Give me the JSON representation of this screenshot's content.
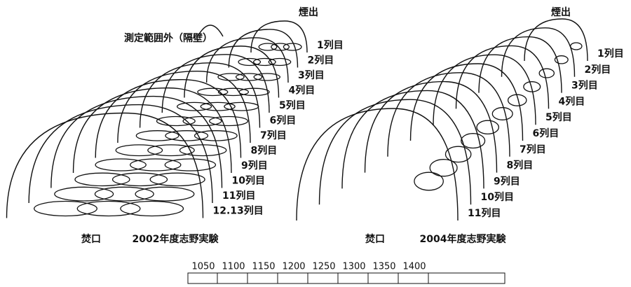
{
  "left_panel": {
    "top_label": "煙出",
    "out_of_range_label": "測定範囲外（隔壁）",
    "rows": [
      "1列目",
      "2列目",
      "3列目",
      "4列目",
      "5列目",
      "6列目",
      "7列目",
      "8列目",
      "9列目",
      "10列目",
      "11列目",
      "12.13列目"
    ],
    "mouth_label": "焚口",
    "title": "2002年度志野実験"
  },
  "right_panel": {
    "top_label": "煙出",
    "rows": [
      "1列目",
      "2列目",
      "3列目",
      "4列目",
      "5列目",
      "6列目",
      "7列目",
      "8列目",
      "9列目",
      "10列目",
      "11列目"
    ],
    "mouth_label": "焚口",
    "title": "2004年度志野実験"
  },
  "scale": {
    "ticks": [
      "1050",
      "1100",
      "1150",
      "1200",
      "1250",
      "1300",
      "1350",
      "1400"
    ]
  }
}
